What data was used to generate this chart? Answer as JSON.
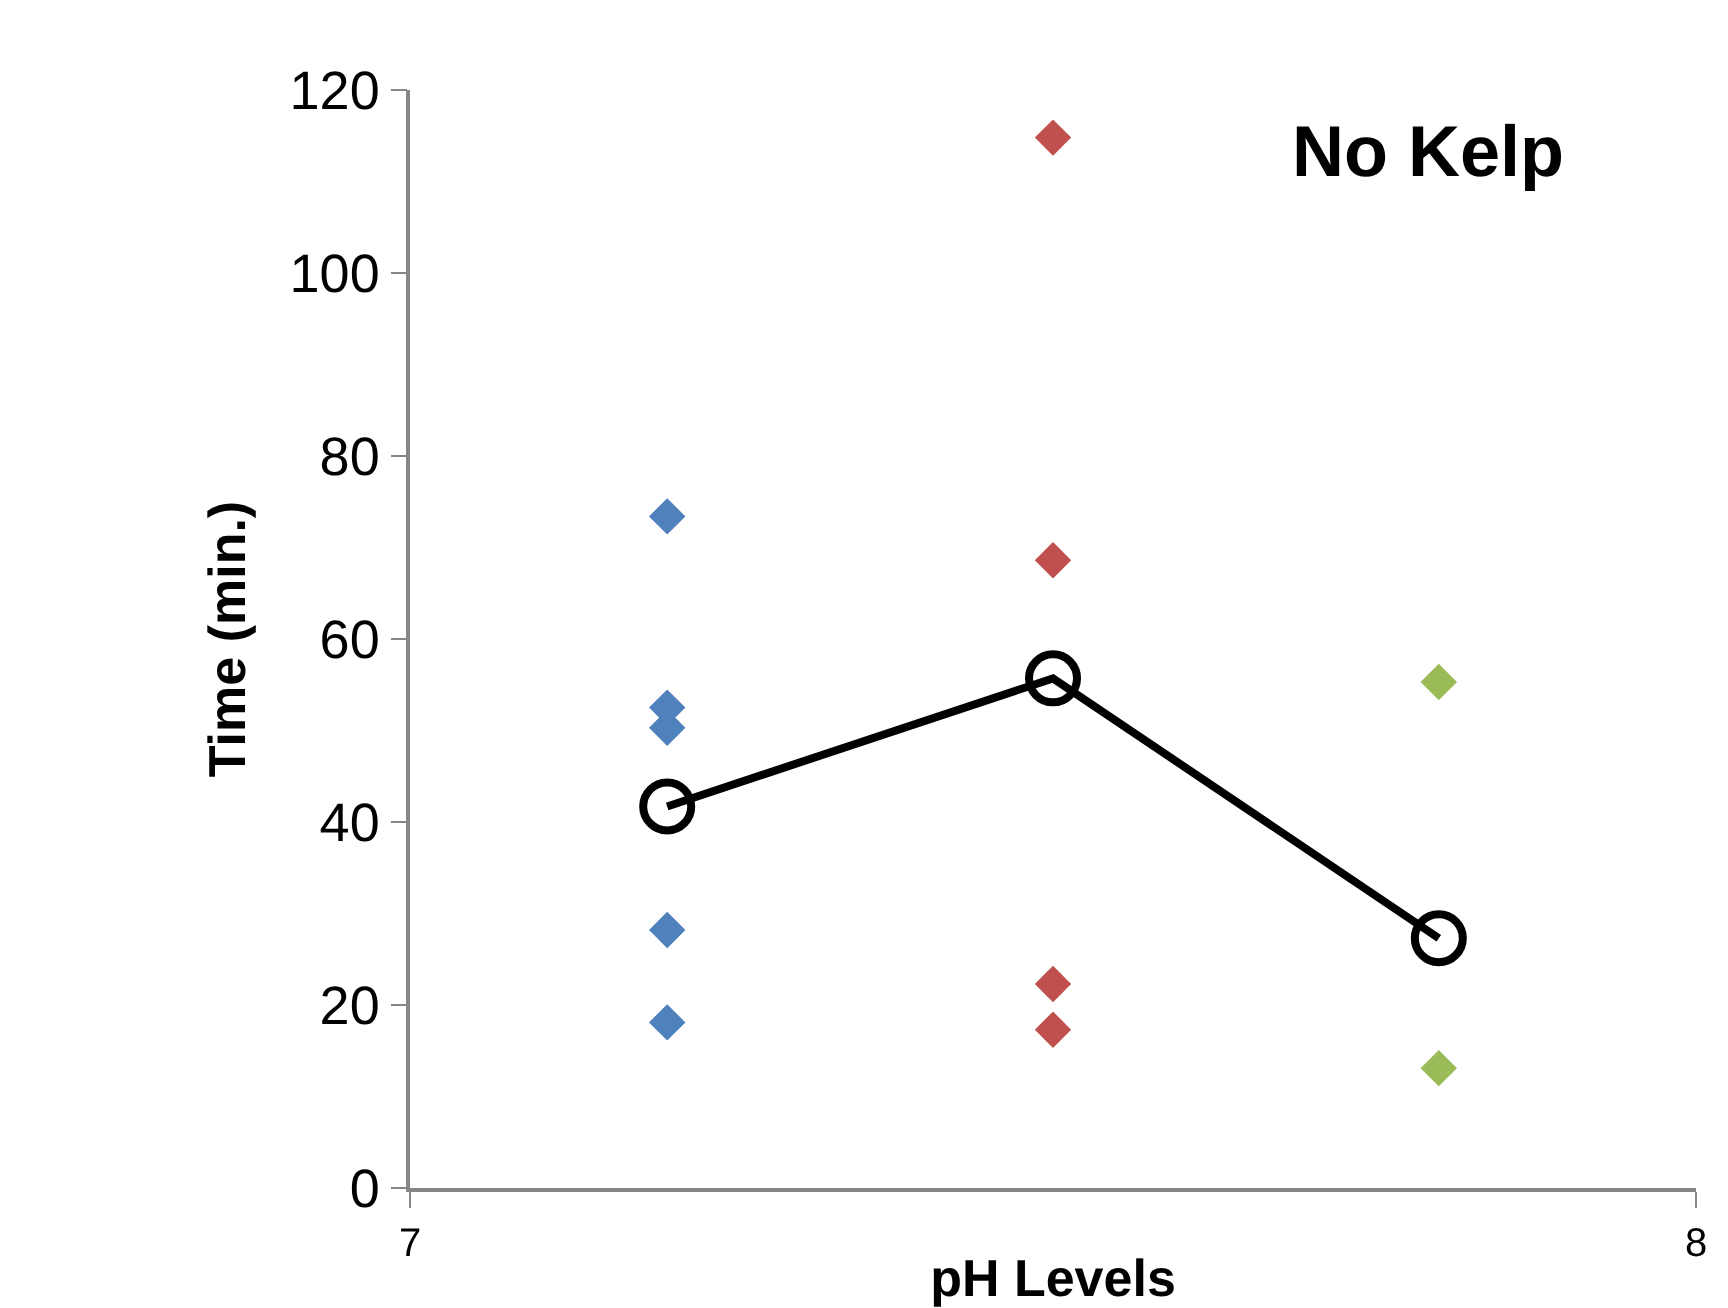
{
  "chart_data": {
    "type": "scatter",
    "xlabel": "pH Levels",
    "ylabel": "Time (min.)",
    "annotations": [
      "No Kelp"
    ],
    "xlim": [
      7,
      8
    ],
    "xticks": [
      7,
      8
    ],
    "ylim": [
      0,
      120
    ],
    "yticks": [
      0,
      20,
      40,
      60,
      80,
      100,
      120
    ],
    "grid": false,
    "marker": "diamond",
    "series": [
      {
        "color": "#4f81bd",
        "x": [
          7.2,
          7.2,
          7.2,
          7.2,
          7.2
        ],
        "values": [
          73.4,
          52.5,
          50.3,
          28.2,
          18.1
        ]
      },
      {
        "color": "#c0504d",
        "x": [
          7.5,
          7.5,
          7.5,
          7.5
        ],
        "values": [
          114.8,
          68.6,
          22.3,
          17.3
        ]
      },
      {
        "color": "#9bbb59",
        "x": [
          7.8,
          7.8
        ],
        "values": [
          55.3,
          13.1
        ]
      },
      {
        "type": "line",
        "color": "#000000",
        "marker": "circle",
        "x": [
          7.2,
          7.5,
          7.8
        ],
        "values": [
          41.7,
          55.7,
          27.3
        ]
      }
    ]
  }
}
